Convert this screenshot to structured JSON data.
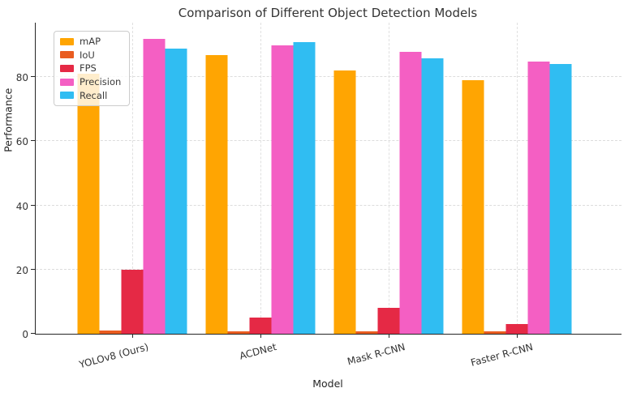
{
  "chart_data": {
    "type": "bar",
    "title": "Comparison of Different Object Detection Models",
    "xlabel": "Model",
    "ylabel": "Performance",
    "categories": [
      "YOLOv8 (Ours)",
      "ACDNet",
      "Mask R-CNN",
      "Faster R-CNN"
    ],
    "series": [
      {
        "name": "mAP",
        "color": "#FFA502",
        "values": [
          81,
          87,
          82,
          79
        ]
      },
      {
        "name": "IoU",
        "color": "#E95C20",
        "values": [
          0.9,
          0.8,
          0.85,
          0.75
        ]
      },
      {
        "name": "FPS",
        "color": "#E52945",
        "values": [
          20,
          5,
          8,
          3
        ]
      },
      {
        "name": "Precision",
        "color": "#F45FC3",
        "values": [
          92,
          90,
          88,
          85
        ]
      },
      {
        "name": "Recall",
        "color": "#30BDF2",
        "values": [
          89,
          91,
          86,
          84
        ]
      }
    ],
    "yticks": [
      0,
      20,
      40,
      60,
      80
    ],
    "ylim": [
      0,
      97
    ],
    "grid": "dashed, both axes",
    "legend_position": "upper left",
    "background_color": "#ffffff",
    "axis_color": "#262626",
    "grid_color": "#dcdcdc"
  }
}
